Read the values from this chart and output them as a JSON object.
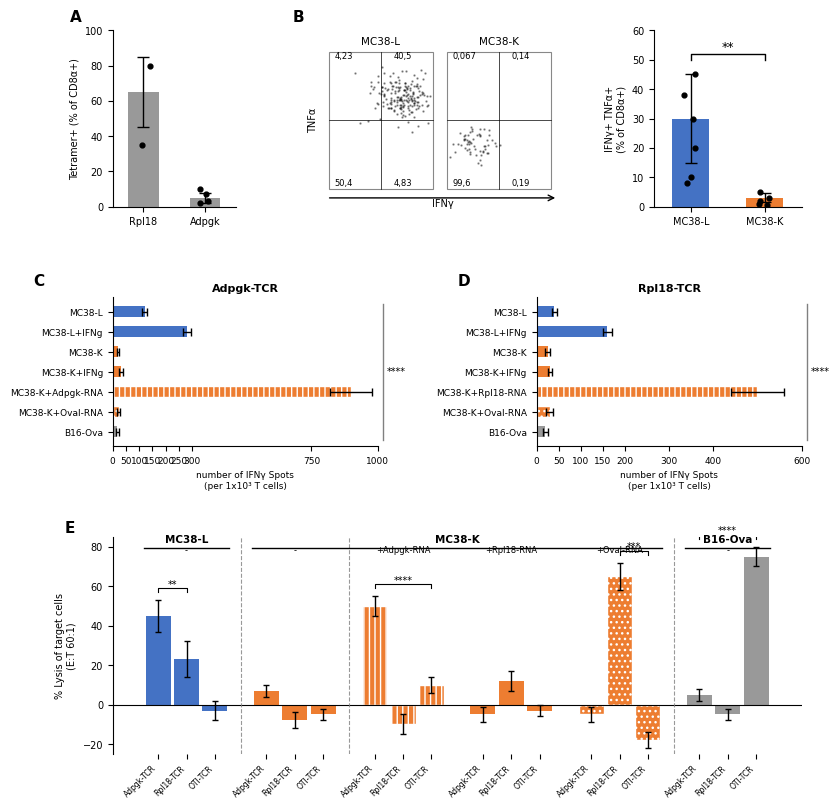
{
  "panel_A": {
    "categories": [
      "Rpl18",
      "Adpgk"
    ],
    "means": [
      65,
      5
    ],
    "errors": [
      20,
      3
    ],
    "dots": {
      "Rpl18": [
        35,
        80
      ],
      "Adpgk": [
        3,
        7,
        10,
        2
      ]
    },
    "color": "#999999",
    "ylabel": "Tetramer+ (% of CD8α+)",
    "ylim": [
      0,
      100
    ]
  },
  "panel_B_bar": {
    "categories": [
      "MC38-L",
      "MC38-K"
    ],
    "means": [
      30,
      3
    ],
    "errors": [
      15,
      1.5
    ],
    "dots": {
      "MC38-L": [
        45,
        38,
        30,
        20,
        10,
        8
      ],
      "MC38-K": [
        5,
        3,
        2,
        1,
        0.5
      ]
    },
    "colors": [
      "#4472c4",
      "#ed7d31"
    ],
    "ylabel": "IFNγ+ TNFα+\n(% of CD8α+)",
    "ylim": [
      0,
      60
    ],
    "sig": "**"
  },
  "panel_C": {
    "title": "Adpgk-TCR",
    "categories": [
      "MC38-L",
      "MC38-L+IFNg",
      "MC38-K",
      "MC38-K+IFNg",
      "MC38-K+Adpgk-RNA",
      "MC38-K+Oval-RNA",
      "B16-Ova"
    ],
    "means": [
      120,
      280,
      20,
      30,
      900,
      22,
      18
    ],
    "errors": [
      10,
      15,
      3,
      8,
      80,
      5,
      4
    ],
    "colors": [
      "#4472c4",
      "#4472c4",
      "#ed7d31",
      "#ed7d31",
      "#ed7d31",
      "#ed7d31",
      "#999999"
    ],
    "patterns": [
      "",
      "",
      "",
      "",
      "||||",
      ".....",
      ""
    ],
    "xlabel": "number of IFNγ Spots\n(per 1x10³ T cells)",
    "xlim": [
      0,
      1000
    ],
    "xticks": [
      0,
      50,
      100,
      150,
      200,
      250,
      300,
      750,
      1000
    ],
    "sig": "****"
  },
  "panel_D": {
    "title": "Rpl18-TCR",
    "categories": [
      "MC38-L",
      "MC38-L+IFNg",
      "MC38-K",
      "MC38-K+IFNg",
      "MC38-K+Rpl18-RNA",
      "MC38-K+Oval-RNA",
      "B16-Ova"
    ],
    "means": [
      40,
      160,
      25,
      30,
      500,
      30,
      20
    ],
    "errors": [
      5,
      10,
      5,
      5,
      60,
      8,
      5
    ],
    "colors": [
      "#4472c4",
      "#4472c4",
      "#ed7d31",
      "#ed7d31",
      "#ed7d31",
      "#ed7d31",
      "#999999"
    ],
    "patterns": [
      "",
      "",
      "",
      "",
      "||||",
      ".....",
      ""
    ],
    "xlabel": "number of IFNγ Spots\n(per 1x10³ T cells)",
    "xlim": [
      0,
      600
    ],
    "xticks": [
      0,
      50,
      100,
      150,
      200,
      300,
      400,
      600
    ],
    "sig": "****"
  },
  "panel_E": {
    "groups": [
      {
        "label": "MC38-L\n-",
        "bars": [
          {
            "tcr": "Adpgk-TCR",
            "value": 45,
            "error": 8,
            "color": "#4472c4",
            "pattern": ""
          },
          {
            "tcr": "Rpl18-TCR",
            "value": 23,
            "error": 9,
            "color": "#4472c4",
            "pattern": ""
          },
          {
            "tcr": "OTI-TCR",
            "value": -3,
            "error": 5,
            "color": "#4472c4",
            "pattern": ""
          }
        ],
        "sig": "**",
        "sig_bars": [
          0,
          1
        ]
      },
      {
        "label": "MC38-K\n-",
        "bars": [
          {
            "tcr": "Adpgk-TCR",
            "value": 7,
            "error": 3,
            "color": "#ed7d31",
            "pattern": ""
          },
          {
            "tcr": "Rpl18-TCR",
            "value": -8,
            "error": 4,
            "color": "#ed7d31",
            "pattern": ""
          },
          {
            "tcr": "OTI-TCR",
            "value": -5,
            "error": 3,
            "color": "#ed7d31",
            "pattern": ""
          }
        ],
        "sig": null,
        "sig_bars": null
      },
      {
        "label": "MC38-K\n+Adpgk-RNA",
        "bars": [
          {
            "tcr": "Adpgk-TCR",
            "value": 50,
            "error": 5,
            "color": "#ed7d31",
            "pattern": "||||"
          },
          {
            "tcr": "Rpl18-TCR",
            "value": -10,
            "error": 5,
            "color": "#ed7d31",
            "pattern": "||||"
          },
          {
            "tcr": "OTI-TCR",
            "value": 10,
            "error": 4,
            "color": "#ed7d31",
            "pattern": "||||"
          }
        ],
        "sig": "****",
        "sig_bars": [
          0,
          2
        ]
      },
      {
        "label": "MC38-K\n+Rpl18-RNA",
        "bars": [
          {
            "tcr": "Adpgk-TCR",
            "value": -5,
            "error": 4,
            "color": "#ed7d31",
            "pattern": ""
          },
          {
            "tcr": "Rpl18-TCR",
            "value": 12,
            "error": 5,
            "color": "#ed7d31",
            "pattern": ""
          },
          {
            "tcr": "OTI-TCR",
            "value": -3,
            "error": 3,
            "color": "#ed7d31",
            "pattern": ""
          }
        ],
        "sig": null,
        "sig_bars": null
      },
      {
        "label": "MC38-K\n+Oval-RNA",
        "bars": [
          {
            "tcr": "Adpgk-TCR",
            "value": -5,
            "error": 4,
            "color": "#ed7d31",
            "pattern": "......"
          },
          {
            "tcr": "Rpl18-TCR",
            "value": 65,
            "error": 7,
            "color": "#ed7d31",
            "pattern": "......"
          },
          {
            "tcr": "OTI-TCR",
            "value": -18,
            "error": 4,
            "color": "#ed7d31",
            "pattern": "......"
          }
        ],
        "sig": "***",
        "sig_bars": [
          1,
          2
        ]
      },
      {
        "label": "B16-Ova\n-",
        "bars": [
          {
            "tcr": "Adpgk-TCR",
            "value": 5,
            "error": 3,
            "color": "#999999",
            "pattern": ""
          },
          {
            "tcr": "Rpl18-TCR",
            "value": -5,
            "error": 3,
            "color": "#999999",
            "pattern": ""
          },
          {
            "tcr": "OTI-TCR",
            "value": 75,
            "error": 5,
            "color": "#999999",
            "pattern": ""
          }
        ],
        "sig": "****",
        "sig_bars": [
          0,
          2
        ]
      }
    ],
    "ylabel": "% Lysis of target cells\n(E:T 60:1)",
    "ylim": [
      -25,
      85
    ],
    "yticks": [
      -20,
      0,
      20,
      40,
      60,
      80
    ]
  }
}
